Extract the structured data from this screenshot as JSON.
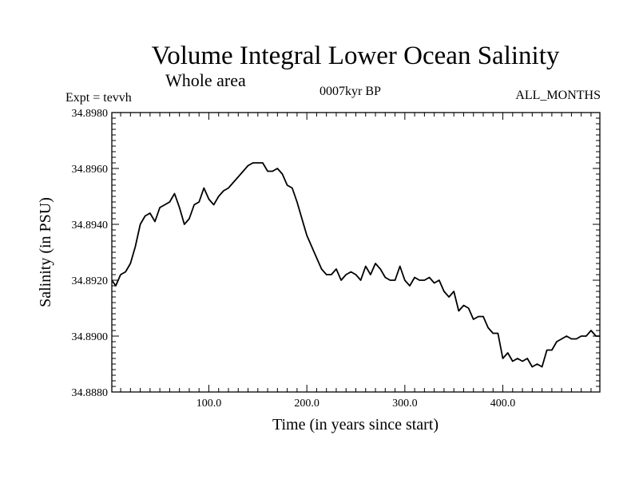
{
  "chart_data": {
    "type": "line",
    "title": "Volume Integral Lower Ocean Salinity",
    "subtitle": "Whole area",
    "annotations": {
      "left": "Expt = tevvh",
      "center": "0007kyr BP",
      "right": "ALL_MONTHS"
    },
    "xlabel": "Time (in years since start)",
    "ylabel": "Salinity (in PSU)",
    "xlim": [
      1,
      499
    ],
    "ylim": [
      34.888,
      34.898
    ],
    "x_ticks": [
      100,
      200,
      300,
      400
    ],
    "x_tick_labels": [
      "100.0",
      "200.0",
      "300.0",
      "400.0"
    ],
    "y_ticks": [
      34.888,
      34.89,
      34.892,
      34.894,
      34.896,
      34.898
    ],
    "y_tick_labels": [
      "34.8880",
      "34.8900",
      "34.8920",
      "34.8940",
      "34.8960",
      "34.8980"
    ],
    "grid": false,
    "legend": "none",
    "series": [
      {
        "color": "#000000",
        "x": [
          1,
          5,
          10,
          15,
          20,
          25,
          30,
          35,
          40,
          45,
          50,
          55,
          60,
          65,
          70,
          75,
          80,
          85,
          90,
          95,
          100,
          105,
          110,
          115,
          120,
          125,
          130,
          135,
          140,
          145,
          150,
          155,
          160,
          165,
          170,
          175,
          180,
          185,
          190,
          195,
          200,
          205,
          210,
          215,
          220,
          225,
          230,
          235,
          240,
          245,
          250,
          255,
          260,
          265,
          270,
          275,
          280,
          285,
          290,
          295,
          300,
          305,
          310,
          315,
          320,
          325,
          330,
          335,
          340,
          345,
          350,
          355,
          360,
          365,
          370,
          375,
          380,
          385,
          390,
          395,
          400,
          405,
          410,
          415,
          420,
          425,
          430,
          435,
          440,
          445,
          450,
          455,
          460,
          465,
          470,
          475,
          480,
          485,
          490,
          495,
          499
        ],
        "y": [
          34.892,
          34.8918,
          34.8922,
          34.8923,
          34.8926,
          34.8932,
          34.894,
          34.8943,
          34.8944,
          34.8941,
          34.8946,
          34.8947,
          34.8948,
          34.8951,
          34.8946,
          34.894,
          34.8942,
          34.8947,
          34.8948,
          34.8953,
          34.8949,
          34.8947,
          34.895,
          34.8952,
          34.8953,
          34.8955,
          34.8957,
          34.8959,
          34.8961,
          34.8962,
          34.8962,
          34.8962,
          34.8959,
          34.8959,
          34.896,
          34.8958,
          34.8954,
          34.8953,
          34.8948,
          34.8942,
          34.8936,
          34.8932,
          34.8928,
          34.8924,
          34.8922,
          34.8922,
          34.8924,
          34.892,
          34.8922,
          34.8923,
          34.8922,
          34.892,
          34.8925,
          34.8922,
          34.8926,
          34.8924,
          34.8921,
          34.892,
          34.892,
          34.8925,
          34.892,
          34.8918,
          34.8921,
          34.892,
          34.892,
          34.8921,
          34.8919,
          34.892,
          34.8916,
          34.8914,
          34.8916,
          34.8909,
          34.8911,
          34.891,
          34.8906,
          34.8907,
          34.8907,
          34.8903,
          34.8901,
          34.8901,
          34.8892,
          34.8894,
          34.8891,
          34.8892,
          34.8891,
          34.8892,
          34.8889,
          34.889,
          34.8889,
          34.8895,
          34.8895,
          34.8898,
          34.8899,
          34.89,
          34.8899,
          34.8899,
          34.89,
          34.89,
          34.8902,
          34.89,
          34.89
        ]
      }
    ]
  }
}
